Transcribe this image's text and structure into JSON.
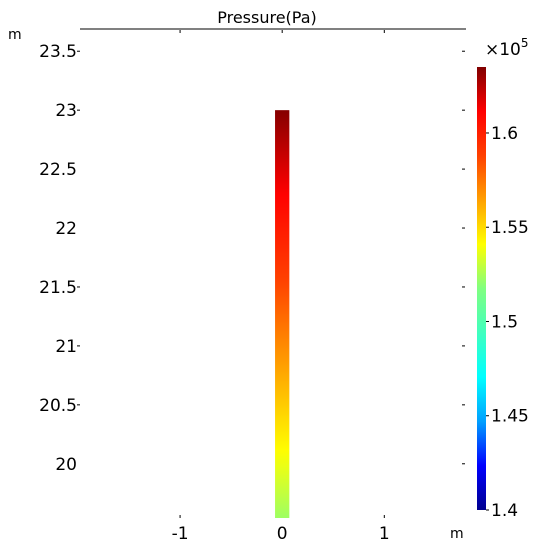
{
  "chart_data": {
    "type": "heatmap",
    "title": "Pressure(Pa)",
    "xlabel": "m",
    "ylabel": "m",
    "x_ticks": [
      -1,
      0,
      1
    ],
    "x_tick_labels": [
      "-1",
      "0",
      "1"
    ],
    "y_ticks": [
      20,
      20.5,
      21,
      21.5,
      22,
      22.5,
      23,
      23.5
    ],
    "y_tick_labels": [
      "20",
      "20.5",
      "21",
      "21.5",
      "22",
      "22.5",
      "23",
      "23.5"
    ],
    "xlim": [
      -1.98,
      1.8
    ],
    "ylim": [
      19.54,
      23.68
    ],
    "bar": {
      "x_range": [
        -0.07,
        0.07
      ],
      "y_range": [
        19.54,
        23.0
      ],
      "value_top": 163400,
      "value_bottom": 152300
    },
    "colorbar": {
      "multiplier": "×10",
      "exponent": "5",
      "range": [
        1.4,
        1.635
      ],
      "ticks": [
        1.4,
        1.45,
        1.5,
        1.55,
        1.6
      ],
      "tick_labels": [
        "1.4",
        "1.45",
        "1.5",
        "1.55",
        "1.6"
      ],
      "colormap": "rainbow",
      "colors": [
        "#00008f",
        "#0000ff",
        "#00a0ff",
        "#00ffff",
        "#40ffbf",
        "#80ff80",
        "#ffff00",
        "#ffa000",
        "#ff4000",
        "#ff0000",
        "#800000"
      ]
    },
    "grid": false
  }
}
